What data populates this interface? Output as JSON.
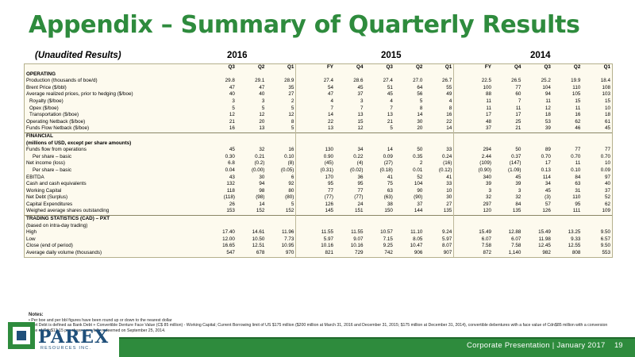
{
  "header": {
    "title": "Appendix – Summary of Quarterly Results",
    "subtitle": "(Unaudited Results)",
    "years": [
      "2016",
      "2015",
      "2014"
    ]
  },
  "table": {
    "columns": [
      "Q3",
      "Q2",
      "Q1",
      "FY",
      "Q4",
      "Q3",
      "Q2",
      "Q1",
      "FY",
      "Q4",
      "Q3",
      "Q2",
      "Q1"
    ],
    "rows": [
      {
        "label": "OPERATING",
        "bold": true,
        "values": []
      },
      {
        "label": "",
        "values": []
      },
      {
        "label": "Production (thousands of boe/d)",
        "values": [
          "29.8",
          "29.1",
          "28.9",
          "27.4",
          "28.6",
          "27.4",
          "27.0",
          "26.7",
          "22.5",
          "26.5",
          "25.2",
          "19.9",
          "18.4"
        ]
      },
      {
        "label": "",
        "values": []
      },
      {
        "label": "Brent Price ($/bbl)",
        "values": [
          "47",
          "47",
          "35",
          "54",
          "45",
          "51",
          "64",
          "55",
          "100",
          "77",
          "104",
          "110",
          "108"
        ]
      },
      {
        "label": "Average realized prices, prior to hedging ($/boe)",
        "values": [
          "40",
          "40",
          "27",
          "47",
          "37",
          "45",
          "56",
          "49",
          "88",
          "60",
          "94",
          "105",
          "103"
        ]
      },
      {
        "label": "Royalty ($/boe)",
        "indent": 1,
        "values": [
          "3",
          "3",
          "2",
          "4",
          "3",
          "4",
          "5",
          "4",
          "11",
          "7",
          "11",
          "15",
          "15"
        ]
      },
      {
        "label": "Opex ($/boe)",
        "indent": 1,
        "values": [
          "5",
          "5",
          "5",
          "7",
          "7",
          "7",
          "8",
          "8",
          "11",
          "11",
          "12",
          "11",
          "10"
        ]
      },
      {
        "label": "Transportation ($/boe)",
        "indent": 1,
        "values": [
          "12",
          "12",
          "12",
          "14",
          "13",
          "13",
          "14",
          "16",
          "17",
          "17",
          "18",
          "16",
          "18"
        ]
      },
      {
        "label": "Operating Netback ($/boe)",
        "values": [
          "21",
          "20",
          "8",
          "22",
          "15",
          "21",
          "30",
          "22",
          "48",
          "25",
          "53",
          "62",
          "61"
        ]
      },
      {
        "label": "",
        "values": []
      },
      {
        "label": "Funds Flow Netback ($/boe)",
        "values": [
          "16",
          "13",
          "5",
          "13",
          "12",
          "5",
          "20",
          "14",
          "37",
          "21",
          "39",
          "46",
          "45"
        ]
      },
      {
        "label": "",
        "values": []
      },
      {
        "label": "FINANCIAL",
        "bold": true,
        "values": []
      },
      {
        "label": "(millions of USD, except per share amounts)",
        "bold": true,
        "values": []
      },
      {
        "label": "",
        "values": []
      },
      {
        "label": "Funds flow from operations",
        "values": [
          "45",
          "32",
          "16",
          "130",
          "34",
          "14",
          "50",
          "33",
          "294",
          "50",
          "89",
          "77",
          "77"
        ]
      },
      {
        "label": "Per share – basic",
        "indent": 2,
        "values": [
          "0.30",
          "0.21",
          "0.10",
          "0.90",
          "0.22",
          "0.09",
          "0.35",
          "0.24",
          "2.44",
          "0.37",
          "0.70",
          "0.70",
          "0.70"
        ]
      },
      {
        "label": "Net income (loss)",
        "values": [
          "6.8",
          "(0.2)",
          "(8)",
          "(45)",
          "(4)",
          "(27)",
          "2",
          "(16)",
          "(109)",
          "(147)",
          "17",
          "11",
          "10"
        ]
      },
      {
        "label": "Per share – basic",
        "indent": 2,
        "values": [
          "0.04",
          "(0.00)",
          "(0.05)",
          "(0.31)",
          "(0.02)",
          "(0.18)",
          "0.01",
          "(0.12)",
          "(0.90)",
          "(1.09)",
          "0.13",
          "0.10",
          "0.09"
        ]
      },
      {
        "label": "EBITDA",
        "values": [
          "43",
          "30",
          "6",
          "170",
          "36",
          "41",
          "52",
          "41",
          "340",
          "45",
          "114",
          "84",
          "97"
        ]
      },
      {
        "label": "Cash and cash equivalents",
        "values": [
          "132",
          "94",
          "92",
          "95",
          "95",
          "75",
          "104",
          "33",
          "39",
          "39",
          "34",
          "63",
          "40"
        ]
      },
      {
        "label": "Working Capital",
        "values": [
          "118",
          "98",
          "80",
          "77",
          "77",
          "63",
          "90",
          "10",
          "3",
          "3",
          "45",
          "31",
          "37"
        ]
      },
      {
        "label": "Net Debt (Surplus)",
        "values": [
          "(118)",
          "(98)",
          "(80)",
          "(77)",
          "(77)",
          "(63)",
          "(90)",
          "30",
          "32",
          "32",
          "(3)",
          "110",
          "52"
        ]
      },
      {
        "label": "Capital Expenditures",
        "values": [
          "26",
          "14",
          "5",
          "126",
          "24",
          "38",
          "37",
          "27",
          "297",
          "84",
          "57",
          "95",
          "62"
        ]
      },
      {
        "label": "",
        "values": []
      },
      {
        "label": "Weighed average shares outstanding",
        "values": [
          "153",
          "152",
          "152",
          "145",
          "151",
          "150",
          "144",
          "135",
          "120",
          "135",
          "126",
          "111",
          "109"
        ]
      },
      {
        "label": "",
        "values": []
      },
      {
        "label": "TRADING STATISTICS (CAD) – PXT",
        "bold": true,
        "values": []
      },
      {
        "label": "(based on intra-day trading)",
        "values": []
      },
      {
        "label": "",
        "values": []
      },
      {
        "label": "High",
        "values": [
          "17.40",
          "14.61",
          "11.96",
          "11.55",
          "11.55",
          "10.57",
          "11.10",
          "9.24",
          "15.49",
          "12.88",
          "15.49",
          "13.25",
          "9.50"
        ]
      },
      {
        "label": "Low",
        "values": [
          "12.00",
          "10.50",
          "7.73",
          "5.97",
          "9.07",
          "7.15",
          "8.05",
          "5.97",
          "6.07",
          "6.07",
          "11.98",
          "9.33",
          "6.57"
        ]
      },
      {
        "label": "Close (end of period)",
        "values": [
          "16.65",
          "12.51",
          "10.95",
          "10.16",
          "10.16",
          "9.25",
          "10.47",
          "8.07",
          "7.58",
          "7.58",
          "12.45",
          "12.55",
          "9.50"
        ]
      },
      {
        "label": "Average daily volume (thousands)",
        "values": [
          "547",
          "678",
          "970",
          "821",
          "729",
          "742",
          "906",
          "907",
          "872",
          "1,140",
          "982",
          "808",
          "553"
        ]
      }
    ]
  },
  "notes": {
    "heading": "Notes:",
    "items": [
      "Per boe and per bbl figures have been round up or down to the nearest dollar",
      "Net Debt is defined as Bank Debt + Convertible Denture Face Value (C$ 85 million) - Working Capital; Current Borrowing limit of US $175 million ($200 million at March 31, 2016 and December 31, 2015; $175 million at December 31, 2014), convertible debentures with a face value of Cdn$85 million with a conversion price of Cdn$13.15 per share were fully redeemed on September 25, 2014."
    ]
  },
  "footer": {
    "text": "Corporate Presentation | January 2017",
    "page": "19",
    "logo_text": "PAREX",
    "logo_sub": "RESOURCES INC.",
    "brand_color": "#2e8b3d"
  }
}
